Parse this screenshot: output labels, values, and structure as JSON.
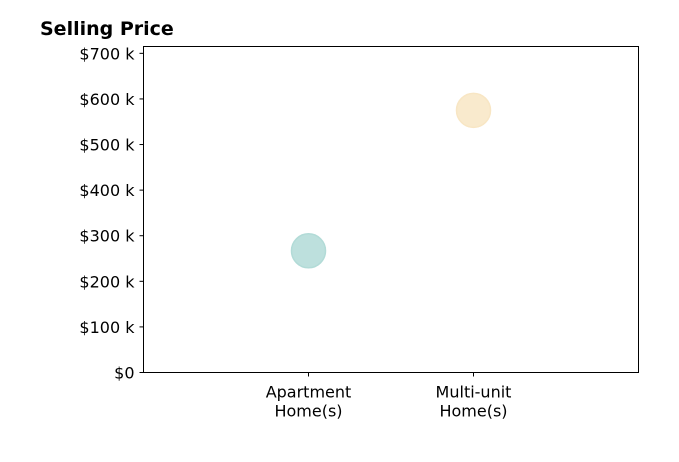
{
  "chart_data": {
    "type": "scatter",
    "title": "Selling Price",
    "xlabel": "",
    "ylabel": "",
    "categories": [
      [
        "Apartment",
        "Home(s)"
      ],
      [
        "Multi-unit",
        "Home(s)"
      ]
    ],
    "points": [
      {
        "category_index": 0,
        "value": 267000,
        "color": "#b2dbd7"
      },
      {
        "category_index": 1,
        "value": 575000,
        "color": "#f8e6c4"
      }
    ],
    "yticks": [
      0,
      100000,
      200000,
      300000,
      400000,
      500000,
      600000,
      700000
    ],
    "ytick_labels": [
      "$0",
      "$100 k",
      "$200 k",
      "$300 k",
      "$400 k",
      "$500 k",
      "$600 k",
      "$700 k"
    ],
    "ylim": [
      0,
      715000
    ],
    "xlim": [
      -1,
      2
    ],
    "grid": false,
    "legend": "none"
  }
}
